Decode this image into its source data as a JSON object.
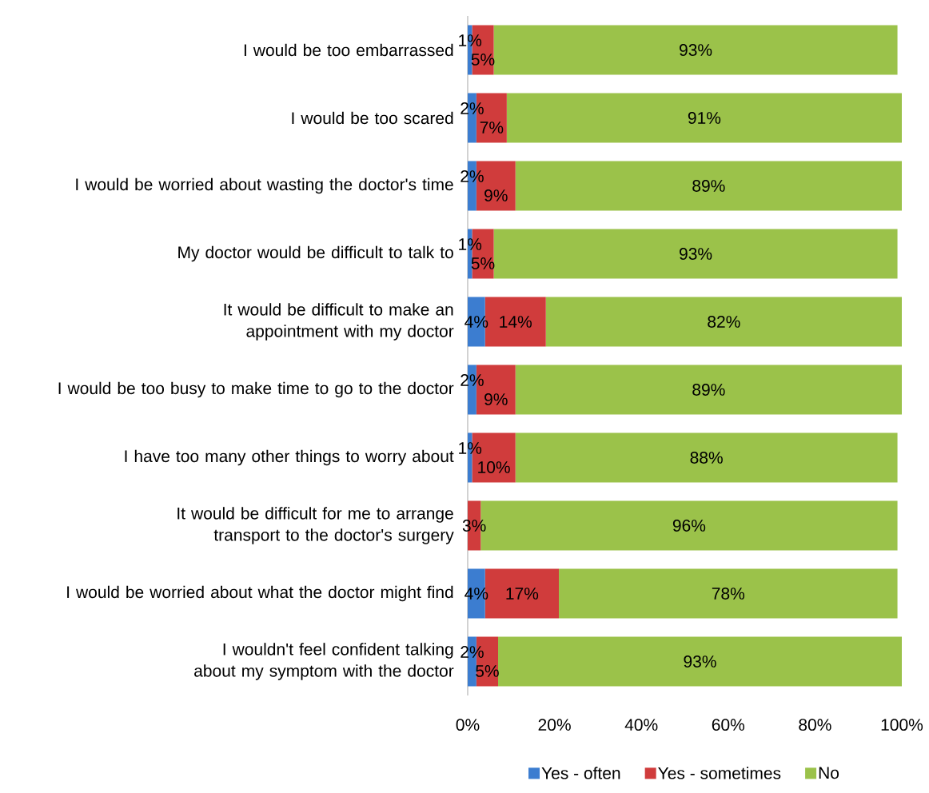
{
  "chart_data": {
    "type": "bar",
    "orientation": "horizontal",
    "stacked": true,
    "categories": [
      "I would be too embarrassed",
      "I would be too scared",
      "I would be worried about wasting the doctor's time",
      "My doctor would be difficult to talk to",
      "It would be difficult to make an appointment with my doctor",
      "I would be too busy to make time to go to the doctor",
      "I have too many other things to worry about",
      "It would be difficult for me to arrange transport to the doctor's surgery",
      "I would be worried about what the doctor might find",
      "I wouldn't feel confident talking about my symptom with the doctor"
    ],
    "series": [
      {
        "name": "Yes - often",
        "color": "#3c7dd0",
        "values": [
          1,
          2,
          2,
          1,
          4,
          2,
          1,
          0,
          4,
          2
        ],
        "value_labels": [
          "1%",
          "2%",
          "2%",
          "1%",
          "4%",
          "2%",
          "1%",
          null,
          "4%",
          "2%"
        ]
      },
      {
        "name": "Yes - sometimes",
        "color": "#d03c3c",
        "values": [
          5,
          7,
          9,
          5,
          14,
          9,
          10,
          3,
          17,
          5
        ],
        "value_labels": [
          "5%",
          "7%",
          "9%",
          "5%",
          "14%",
          "9%",
          "10%",
          "3%",
          "17%",
          "5%"
        ]
      },
      {
        "name": "No",
        "color": "#9bc24a",
        "values": [
          93,
          91,
          89,
          93,
          82,
          89,
          88,
          96,
          78,
          93
        ],
        "value_labels": [
          "93%",
          "91%",
          "89%",
          "93%",
          "82%",
          "89%",
          "88%",
          "96%",
          "78%",
          "93%"
        ]
      }
    ],
    "xlim": [
      0,
      100
    ],
    "xticks": [
      {
        "value": 0,
        "label": "0%"
      },
      {
        "value": 20,
        "label": "20%"
      },
      {
        "value": 40,
        "label": "40%"
      },
      {
        "value": 60,
        "label": "60%"
      },
      {
        "value": 80,
        "label": "80%"
      },
      {
        "value": 100,
        "label": "100%"
      }
    ],
    "legend": "bottom",
    "grid": false
  }
}
